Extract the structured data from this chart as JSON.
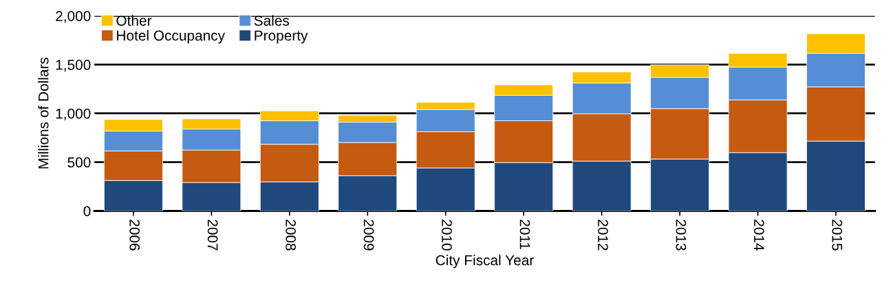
{
  "chart_data": {
    "type": "bar",
    "stacked": true,
    "xlabel": "City Fiscal Year",
    "ylabel": "Millions of Dollars",
    "categories": [
      "2006",
      "2007",
      "2008",
      "2009",
      "2010",
      "2011",
      "2012",
      "2013",
      "2014",
      "2015"
    ],
    "series": [
      {
        "name": "Property",
        "color": "#1f497d",
        "values": [
          312,
          291,
          298,
          361,
          441,
          495,
          511,
          532,
          598,
          716
        ]
      },
      {
        "name": "Hotel Occupancy",
        "color": "#c55a11",
        "values": [
          303,
          333,
          385,
          341,
          371,
          429,
          484,
          517,
          540,
          556
        ]
      },
      {
        "name": "Sales",
        "color": "#558ed5",
        "values": [
          204,
          216,
          241,
          208,
          228,
          262,
          316,
          321,
          336,
          343
        ]
      },
      {
        "name": "Other",
        "color": "#ffc000",
        "values": [
          119,
          103,
          102,
          71,
          73,
          107,
          113,
          128,
          141,
          201
        ]
      }
    ],
    "ylim": [
      0,
      2000
    ],
    "yticks": [
      0,
      {
        "value": 500,
        "label": "500"
      },
      {
        "value": 1000,
        "label": "1,000"
      },
      {
        "value": 1500,
        "label": "1,500"
      },
      {
        "value": 2000,
        "label": "2,000"
      }
    ],
    "grid": "y",
    "legend": "top left"
  }
}
